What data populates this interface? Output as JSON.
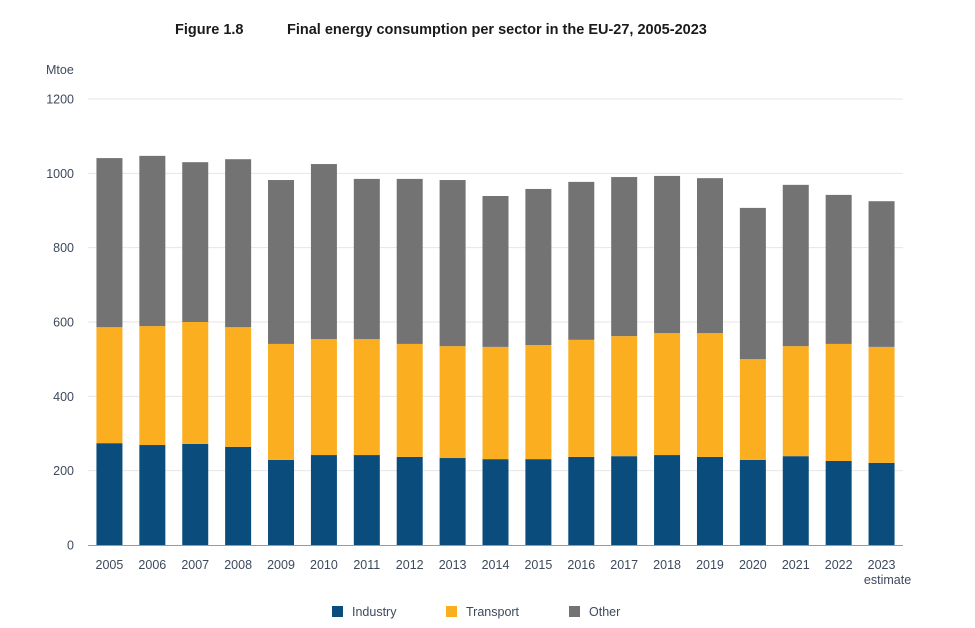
{
  "header": {
    "figure_label": "Figure 1.8",
    "title": "Final energy consumption per sector in the EU-27, 2005-2023"
  },
  "chart_data": {
    "type": "bar",
    "stacked": true,
    "title": "Final energy consumption per sector in the EU-27, 2005-2023",
    "xlabel": "",
    "ylabel": "Mtoe",
    "ylim": [
      0,
      1200
    ],
    "yticks": [
      0,
      200,
      400,
      600,
      800,
      1000,
      1200
    ],
    "grid": true,
    "legend_position": "bottom",
    "categories": [
      "2005",
      "2006",
      "2007",
      "2008",
      "2009",
      "2010",
      "2011",
      "2012",
      "2013",
      "2014",
      "2015",
      "2016",
      "2017",
      "2018",
      "2019",
      "2020",
      "2021",
      "2022",
      "2023"
    ],
    "category_sublabels": {
      "2023": "estimate"
    },
    "series": [
      {
        "name": "Industry",
        "color": "#0a4c7c",
        "values": [
          274,
          269,
          272,
          264,
          229,
          242,
          242,
          237,
          234,
          231,
          231,
          237,
          239,
          242,
          237,
          229,
          239,
          226,
          221
        ]
      },
      {
        "name": "Transport",
        "color": "#fbae1f",
        "values": [
          312,
          320,
          328,
          322,
          312,
          312,
          312,
          304,
          301,
          302,
          307,
          315,
          323,
          328,
          333,
          271,
          296,
          315,
          312
        ]
      },
      {
        "name": "Other",
        "color": "#737373",
        "values": [
          455,
          458,
          430,
          452,
          441,
          471,
          431,
          444,
          447,
          406,
          420,
          425,
          428,
          423,
          417,
          407,
          434,
          401,
          392
        ]
      }
    ]
  },
  "colors": {
    "gridline": "#e6e6e6",
    "axis": "#9a9a9a",
    "text": "#3d4a5c"
  }
}
